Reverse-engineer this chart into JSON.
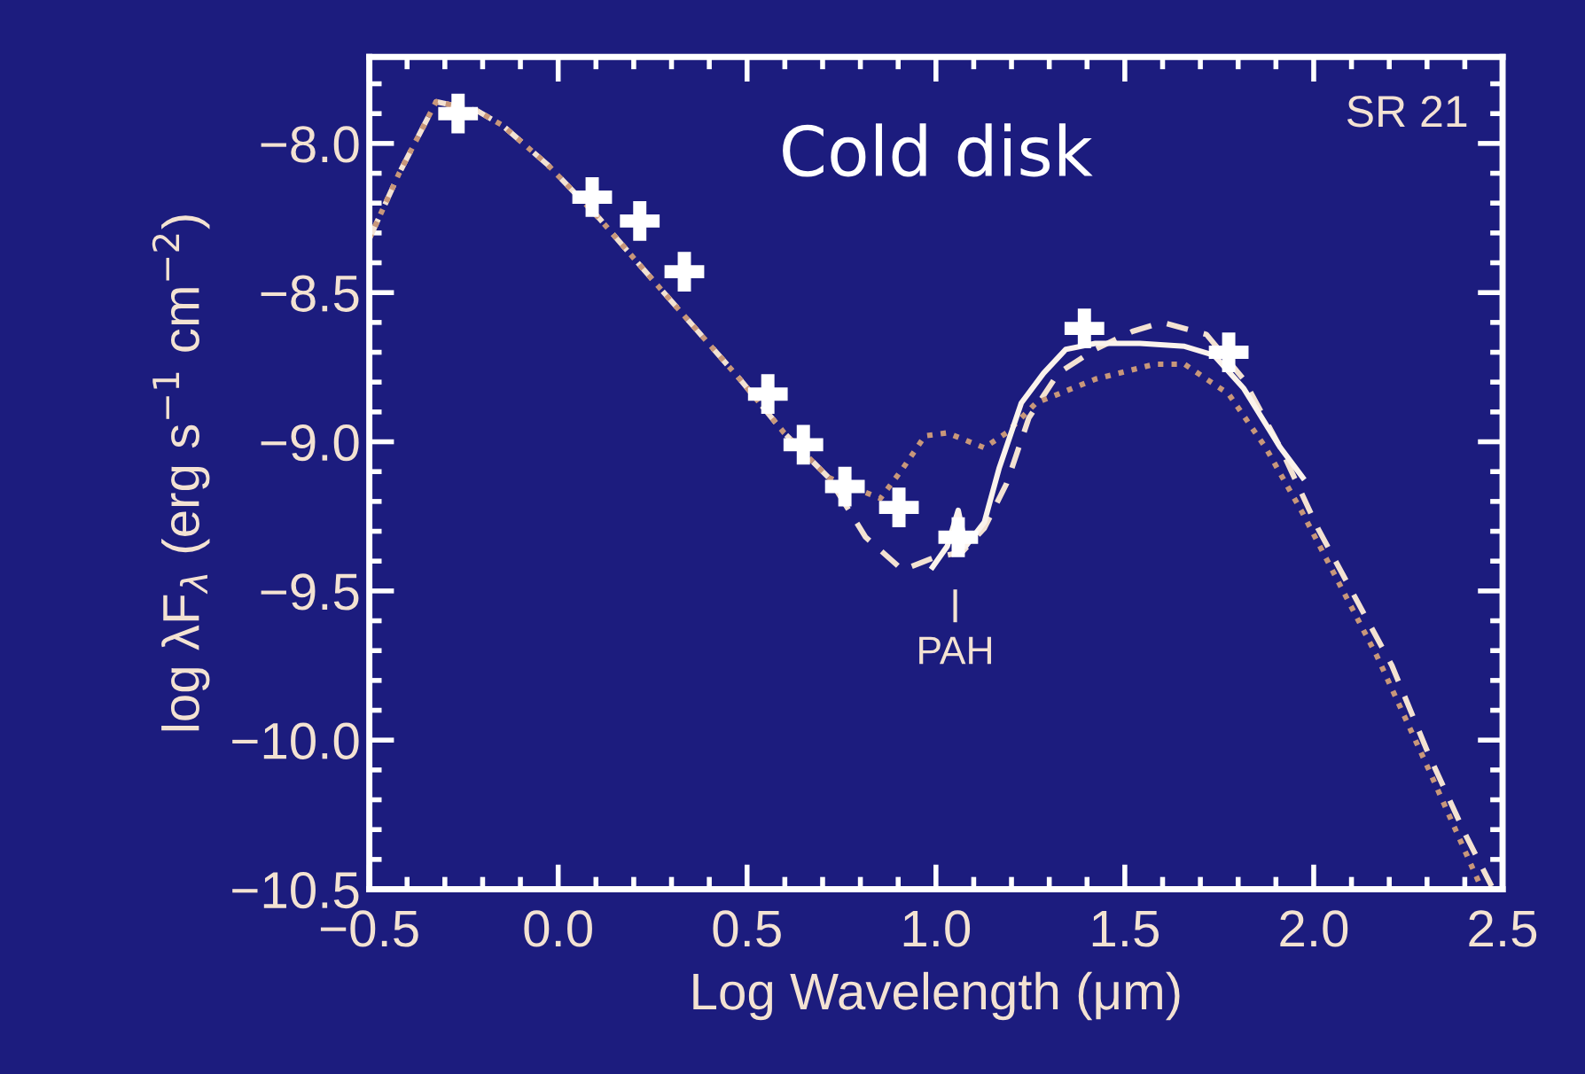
{
  "chart_data": {
    "type": "line",
    "title": "Cold disk",
    "xlabel": "Log Wavelength (μm)",
    "ylabel": "log λF$_{λ}$ (erg s$^{−1}$ cm$^{−2}$)",
    "annotations": [
      "SR 21",
      "PAH"
    ],
    "xlim": [
      -0.5,
      2.5
    ],
    "ylim": [
      -10.5,
      -7.71
    ],
    "xticks": [
      -0.5,
      {
        "value": 0,
        "label": "0.0"
      },
      0.5,
      {
        "value": 1,
        "label": "1.0"
      },
      1.5,
      {
        "value": 2,
        "label": "2.0"
      },
      2.5
    ],
    "yticks": [
      {
        "value": -8,
        "label": "−8.0"
      },
      -8.5,
      {
        "value": -9,
        "label": "−9.0"
      },
      -9.5,
      {
        "value": -10,
        "label": "−10.0"
      },
      -10.5
    ],
    "grid": false,
    "series": [
      {
        "line_style": "dashed",
        "color": "#f3e2d2",
        "x": [
          -0.5,
          -0.421,
          -0.323,
          -0.215,
          -0.147,
          -0.029,
          0.108,
          0.245,
          0.363,
          0.481,
          0.598,
          0.716,
          0.814,
          0.912,
          0.991,
          1.069,
          1.128,
          1.187,
          1.246,
          1.324,
          1.422,
          1.52,
          1.599,
          1.716,
          1.814,
          1.912,
          2.011,
          2.207,
          2.305,
          2.403,
          2.471
        ],
        "values": [
          -8.32,
          -8.1,
          -7.86,
          -7.89,
          -7.94,
          -8.07,
          -8.25,
          -8.45,
          -8.62,
          -8.79,
          -8.97,
          -9.12,
          -9.32,
          -9.43,
          -9.39,
          -9.37,
          -9.29,
          -9.14,
          -8.92,
          -8.77,
          -8.69,
          -8.63,
          -8.6,
          -8.64,
          -8.79,
          -9.02,
          -9.29,
          -9.75,
          -10.05,
          -10.32,
          -10.49
        ]
      },
      {
        "line_style": "dotted",
        "color": "#c8977a",
        "x": [
          -0.5,
          -0.421,
          -0.323,
          -0.215,
          -0.147,
          -0.029,
          0.108,
          0.245,
          0.363,
          0.481,
          0.598,
          0.716,
          0.853,
          0.912,
          0.971,
          1.03,
          1.128,
          1.187,
          1.265,
          1.422,
          1.579,
          1.658,
          1.775,
          1.873,
          1.971,
          2.168,
          2.305,
          2.442
        ],
        "values": [
          -8.32,
          -8.1,
          -7.86,
          -7.89,
          -7.94,
          -8.07,
          -8.25,
          -8.45,
          -8.62,
          -8.79,
          -8.97,
          -9.12,
          -9.19,
          -9.09,
          -8.98,
          -8.97,
          -9.02,
          -8.97,
          -8.87,
          -8.79,
          -8.74,
          -8.74,
          -8.84,
          -9.02,
          -9.24,
          -9.72,
          -10.1,
          -10.49
        ]
      },
      {
        "line_style": "solid",
        "color": "#fbf3ec",
        "x": [
          0.991,
          1.03,
          1.059,
          1.079,
          1.128,
          1.167,
          1.226,
          1.285,
          1.344,
          1.422,
          1.54,
          1.658,
          1.736,
          1.814,
          1.912,
          1.971
        ],
        "values": [
          -9.42,
          -9.35,
          -9.23,
          -9.35,
          -9.27,
          -9.09,
          -8.87,
          -8.77,
          -8.69,
          -8.67,
          -8.67,
          -8.68,
          -8.71,
          -8.82,
          -9.02,
          -9.12
        ]
      },
      {
        "type": "scatter",
        "marker": "cross",
        "color": "#ffffff",
        "x": [
          -0.265,
          0.09,
          0.216,
          0.334,
          0.555,
          0.649,
          0.759,
          0.902,
          1.059,
          1.393,
          1.775
        ],
        "values": [
          -7.9,
          -8.18,
          -8.26,
          -8.43,
          -8.84,
          -9.01,
          -9.15,
          -9.22,
          -9.32,
          -8.62,
          -8.7
        ]
      }
    ]
  }
}
